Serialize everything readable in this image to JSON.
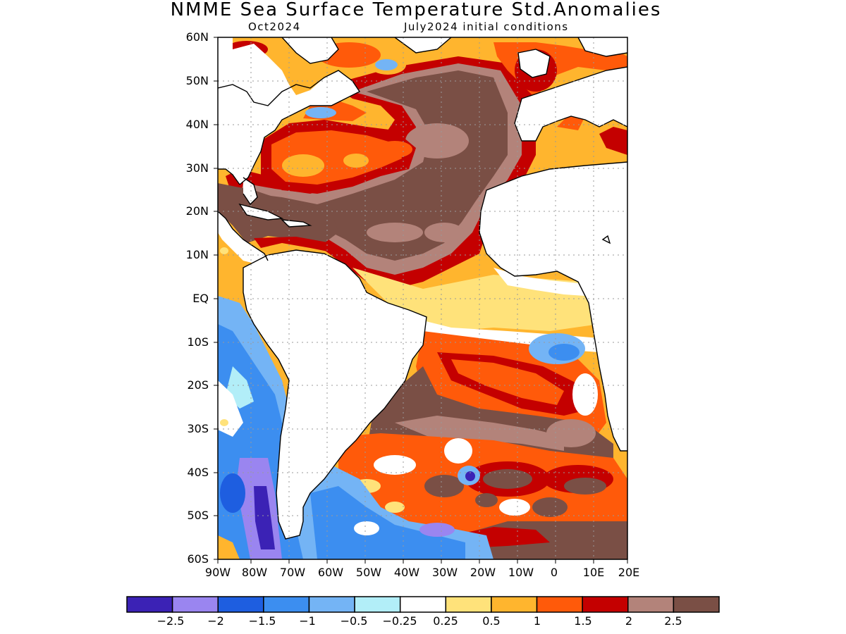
{
  "title": "NMME Sea Surface Temperature Std.Anomalies",
  "subtitle_left": "Oct2024",
  "subtitle_right": "July2024 initial conditions",
  "lat_labels": [
    "60N",
    "50N",
    "40N",
    "30N",
    "20N",
    "10N",
    "EQ",
    "10S",
    "20S",
    "30S",
    "40S",
    "50S",
    "60S"
  ],
  "lon_labels": [
    "90W",
    "80W",
    "70W",
    "60W",
    "50W",
    "40W",
    "30W",
    "20W",
    "10W",
    "0",
    "10E",
    "20E"
  ],
  "colorbar": {
    "colors": [
      "#3b22b5",
      "#9a85f0",
      "#1e5ee0",
      "#3c8ef0",
      "#74b4f5",
      "#b2eef8",
      "#ffffff",
      "#ffe27a",
      "#ffb52e",
      "#ff5a0a",
      "#c40000",
      "#b3837a",
      "#7a4f45"
    ],
    "labels": [
      "−2.5",
      "−2",
      "−1.5",
      "−1",
      "−0.5",
      "−0.25",
      "0.25",
      "0.5",
      "1",
      "1.5",
      "2",
      "2.5"
    ]
  },
  "colors": {
    "land": "#ffffff",
    "coast": "#000000",
    "grid": "#9a9a9a"
  }
}
